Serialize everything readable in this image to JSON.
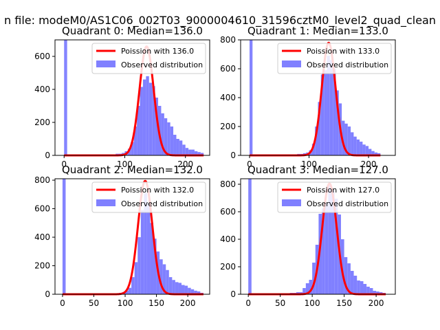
{
  "figure": {
    "suptitle": "n file: modeM0/AS1C06_002T03_9000004610_31596cztM0_level2_quad_clean"
  },
  "colors": {
    "hist": "#8080ff",
    "poisson": "#ff0000"
  },
  "chart_data": [
    {
      "type": "bar",
      "title": "Quadrant 0: Median=136.0",
      "xlim": [
        -15,
        240
      ],
      "ylim": [
        0,
        700
      ],
      "xticks": [
        0,
        100,
        200
      ],
      "yticks": [
        0,
        200,
        400,
        600
      ],
      "legend": {
        "position": "top-right",
        "entries": [
          "Poission with 136.0",
          "Observed distribution"
        ]
      },
      "poisson_mean": 136.0,
      "poisson_peak": 660,
      "histogram": {
        "zero_bin_count": 700,
        "bin_starts": [
          80,
          85,
          90,
          95,
          100,
          105,
          110,
          115,
          120,
          125,
          130,
          135,
          140,
          145,
          150,
          155,
          160,
          165,
          170,
          175,
          180,
          185,
          190,
          195,
          200,
          205,
          210,
          215,
          220,
          225
        ],
        "counts": [
          5,
          10,
          10,
          15,
          25,
          40,
          80,
          175,
          300,
          415,
          460,
          480,
          440,
          420,
          350,
          300,
          255,
          225,
          200,
          175,
          125,
          100,
          90,
          65,
          45,
          35,
          35,
          25,
          20,
          15
        ]
      }
    },
    {
      "type": "bar",
      "title": "Quadrant 1: Median=133.0",
      "xlim": [
        -15,
        245
      ],
      "ylim": [
        0,
        800
      ],
      "xticks": [
        0,
        100,
        200
      ],
      "yticks": [
        0,
        200,
        400,
        600,
        800
      ],
      "legend": {
        "position": "top-right",
        "entries": [
          "Poission with 133.0",
          "Observed distribution"
        ]
      },
      "poisson_mean": 133.0,
      "poisson_peak": 780,
      "histogram": {
        "zero_bin_count": 800,
        "bin_starts": [
          70,
          75,
          80,
          85,
          90,
          95,
          100,
          105,
          110,
          115,
          120,
          125,
          130,
          135,
          140,
          145,
          150,
          155,
          160,
          165,
          170,
          175,
          180,
          185,
          190,
          195,
          200,
          205,
          210,
          215
        ],
        "counts": [
          5,
          5,
          10,
          10,
          15,
          20,
          35,
          80,
          200,
          370,
          560,
          590,
          690,
          660,
          600,
          450,
          360,
          240,
          220,
          200,
          160,
          130,
          110,
          95,
          75,
          65,
          45,
          30,
          20,
          15
        ]
      }
    },
    {
      "type": "bar",
      "title": "Quadrant 2: Median=132.0",
      "xlim": [
        -12,
        235
      ],
      "ylim": [
        0,
        810
      ],
      "xticks": [
        0,
        50,
        100,
        150,
        200
      ],
      "yticks": [
        0,
        200,
        400,
        600,
        800
      ],
      "legend": {
        "position": "top-right",
        "entries": [
          "Poission with 132.0",
          "Observed distribution"
        ]
      },
      "poisson_mean": 132.0,
      "poisson_peak": 795,
      "histogram": {
        "zero_bin_count": 810,
        "bin_starts": [
          80,
          85,
          90,
          95,
          100,
          105,
          110,
          115,
          120,
          125,
          130,
          135,
          140,
          145,
          150,
          155,
          160,
          165,
          170,
          175,
          180,
          185,
          190,
          195,
          200,
          205,
          210,
          215,
          220
        ],
        "counts": [
          5,
          5,
          10,
          15,
          25,
          45,
          120,
          225,
          400,
          590,
          710,
          640,
          500,
          390,
          300,
          245,
          210,
          170,
          120,
          100,
          85,
          80,
          65,
          60,
          45,
          35,
          25,
          20,
          10
        ]
      }
    },
    {
      "type": "bar",
      "title": "Quadrant 3: Median=127.0",
      "xlim": [
        -12,
        230
      ],
      "ylim": [
        0,
        840
      ],
      "xticks": [
        0,
        50,
        100,
        150,
        200
      ],
      "yticks": [
        0,
        200,
        400,
        600,
        800
      ],
      "legend": {
        "position": "top-right",
        "entries": [
          "Poission with 127.0",
          "Observed distribution"
        ]
      },
      "poisson_mean": 127.0,
      "poisson_peak": 805,
      "histogram": {
        "zero_bin_count": 840,
        "bin_starts": [
          55,
          60,
          65,
          70,
          75,
          80,
          85,
          90,
          95,
          100,
          105,
          110,
          115,
          120,
          125,
          130,
          135,
          140,
          145,
          150,
          155,
          160,
          165,
          170,
          175,
          180,
          185,
          190,
          195,
          200,
          205,
          210
        ],
        "counts": [
          5,
          5,
          10,
          10,
          15,
          15,
          45,
          80,
          105,
          230,
          360,
          585,
          625,
          665,
          800,
          760,
          695,
          580,
          400,
          270,
          225,
          170,
          135,
          100,
          95,
          75,
          55,
          45,
          25,
          20,
          15,
          10
        ]
      }
    }
  ]
}
